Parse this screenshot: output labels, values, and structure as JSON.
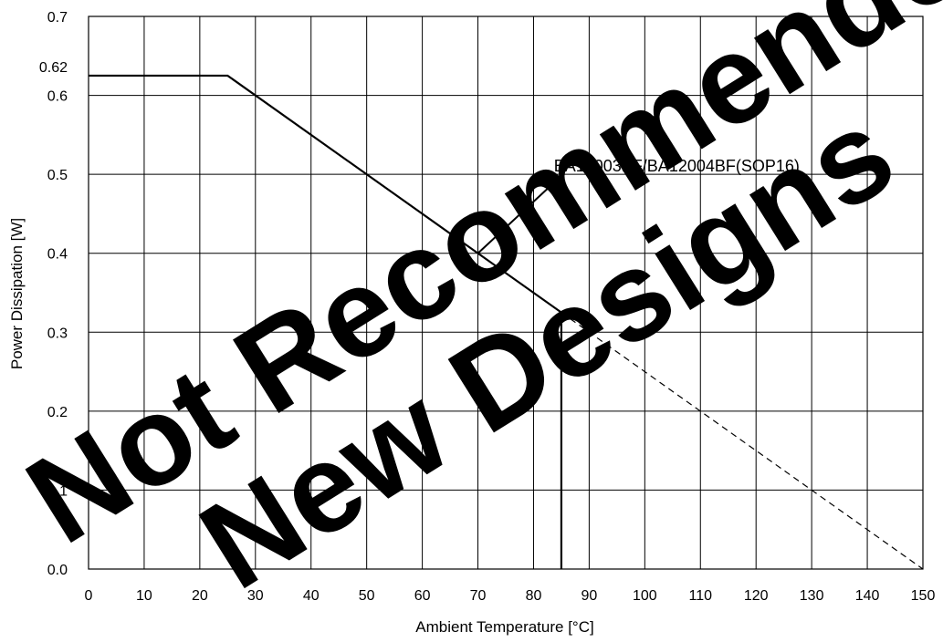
{
  "chart_data": {
    "type": "line",
    "title": "",
    "xlabel": "Ambient Temperature [°C]",
    "ylabel": "Power Dissipation [W]",
    "xlim": [
      0,
      150
    ],
    "ylim": [
      0,
      0.7
    ],
    "x_ticks": [
      "0",
      "10",
      "20",
      "30",
      "40",
      "50",
      "60",
      "70",
      "80",
      "90",
      "100",
      "110",
      "120",
      "130",
      "140",
      "150"
    ],
    "y_ticks": [
      "0.0",
      "0.1",
      "0.2",
      "0.3",
      "0.4",
      "0.5",
      "0.6",
      "0.7"
    ],
    "extra_y_tick": {
      "value": 0.625,
      "label": "0.62"
    },
    "grid": true,
    "series": [
      {
        "name": "BA12003BF/BA12004BF(SOP16)",
        "style": "solid",
        "x": [
          0,
          25,
          85,
          85
        ],
        "y": [
          0.625,
          0.625,
          0.325,
          0
        ]
      },
      {
        "style": "dashed",
        "x": [
          85,
          150
        ],
        "y": [
          0.325,
          0
        ]
      }
    ],
    "annotations": [
      {
        "text": "BA12003BF/BA12004BF(SOP16)",
        "point_x": 70,
        "point_y": 0.4,
        "label_x": 83,
        "label_y": 0.485
      }
    ]
  },
  "watermark": {
    "line1": "Not Recommended for",
    "line2": "New Designs",
    "color": "#000000"
  }
}
